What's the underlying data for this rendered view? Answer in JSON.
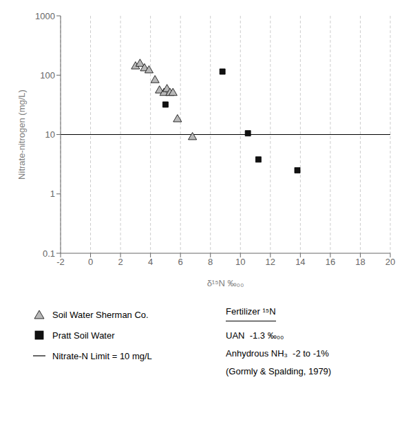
{
  "chart_data": {
    "type": "scatter",
    "xlabel": "δ¹⁵N ‰₀₀",
    "ylabel": "Nitrate-nitrogen (mg/L)",
    "xlim": [
      -2,
      20
    ],
    "ylim": [
      0.1,
      1000
    ],
    "xticks": [
      -2,
      0,
      2,
      4,
      6,
      8,
      10,
      12,
      14,
      16,
      18,
      20
    ],
    "yticks": [
      0.1,
      1,
      10,
      100,
      1000
    ],
    "log": "y",
    "grid": "x",
    "series": [
      {
        "name": "Soil Water Sherman Co.",
        "color": "#b8b8b8",
        "marker": "triangle",
        "x": [
          3.0,
          3.3,
          3.6,
          3.9,
          4.3,
          4.6,
          4.9,
          5.1,
          5.3,
          5.5,
          5.8,
          6.8
        ],
        "values": [
          140,
          155,
          130,
          120,
          82,
          55,
          50,
          58,
          50,
          50,
          18,
          9
        ]
      },
      {
        "name": "Pratt Soil Water",
        "color": "#111111",
        "marker": "square",
        "x": [
          5.0,
          8.8,
          10.5,
          11.2,
          13.8
        ],
        "values": [
          32,
          115,
          10.5,
          3.8,
          2.5
        ]
      }
    ],
    "reference_lines": [
      {
        "y": 10,
        "name": "Nitrate-N Limit = 10 mg/L",
        "color": "#000000"
      }
    ],
    "annotation_title": "Fertilizer ¹⁵N",
    "annotations": [
      "UAN  -1.3 ‰₀₀",
      "Anhydrous NH₃  -2 to -1%",
      "(Gormly & Spalding, 1979)"
    ]
  }
}
